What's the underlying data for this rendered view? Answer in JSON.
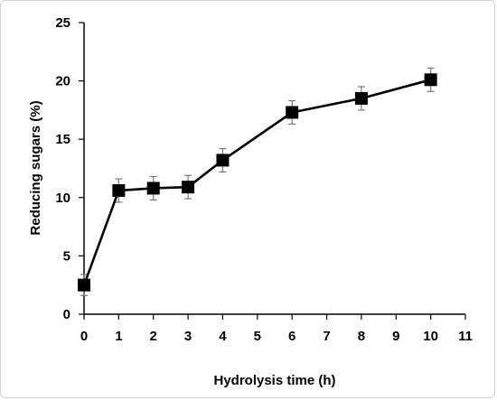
{
  "chart_data": {
    "type": "line",
    "title": "",
    "xlabel": "Hydrolysis time (h)",
    "ylabel": "Reducing sugars (%)",
    "xlim": [
      0,
      11
    ],
    "ylim": [
      0,
      25
    ],
    "x_ticks": [
      0,
      1,
      2,
      3,
      4,
      5,
      6,
      7,
      8,
      9,
      10,
      11
    ],
    "y_ticks": [
      0,
      5,
      10,
      15,
      20,
      25
    ],
    "grid": false,
    "legend": "none",
    "series": [
      {
        "marker": "square",
        "color": "#000000",
        "x": [
          0,
          1,
          2,
          3,
          4,
          6,
          8,
          10
        ],
        "y": [
          2.5,
          10.6,
          10.8,
          10.9,
          13.2,
          17.3,
          18.5,
          20.1
        ],
        "error": [
          0.9,
          1.0,
          1.0,
          1.0,
          1.0,
          1.0,
          1.0,
          1.0
        ]
      }
    ]
  }
}
